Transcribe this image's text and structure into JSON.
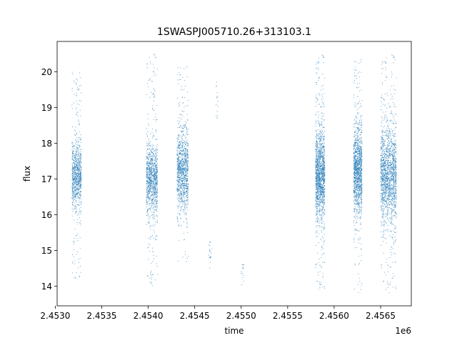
{
  "chart_data": {
    "type": "scatter",
    "title": "1SWASPJ005710.26+313103.1",
    "xlabel": "time",
    "ylabel": "flux",
    "x_offset_label": "1e6",
    "xlim": [
      2.45302,
      2.45683
    ],
    "ylim": [
      13.45,
      20.85
    ],
    "x_ticks": [
      2.453,
      2.4535,
      2.454,
      2.4545,
      2.455,
      2.4555,
      2.456,
      2.4565
    ],
    "x_tick_labels": [
      "2.4530",
      "2.4535",
      "2.4540",
      "2.4545",
      "2.4550",
      "2.4555",
      "2.4560",
      "2.4565"
    ],
    "y_ticks": [
      14,
      15,
      16,
      17,
      18,
      19,
      20
    ],
    "y_tick_labels": [
      "14",
      "15",
      "16",
      "17",
      "18",
      "19",
      "20"
    ],
    "grid": false,
    "legend": "none",
    "marker_color": "#1f77b4",
    "observing_seasons": [
      {
        "x_start": 2.45318,
        "x_end": 2.45328,
        "median_flux": 17.1,
        "core_spread": 0.45,
        "y_min": 14.2,
        "y_max": 20.0,
        "points": 900
      },
      {
        "x_start": 2.45398,
        "x_end": 2.4541,
        "median_flux": 17.0,
        "core_spread": 0.5,
        "y_min": 14.0,
        "y_max": 20.5,
        "points": 1100
      },
      {
        "x_start": 2.45431,
        "x_end": 2.45443,
        "median_flux": 17.2,
        "core_spread": 0.55,
        "y_min": 14.6,
        "y_max": 20.3,
        "points": 1100
      },
      {
        "x_start": 2.45465,
        "x_end": 2.45468,
        "median_flux": 14.9,
        "core_spread": 0.3,
        "y_min": 14.4,
        "y_max": 15.3,
        "points": 20
      },
      {
        "x_start": 2.45473,
        "x_end": 2.45475,
        "median_flux": 19.2,
        "core_spread": 0.3,
        "y_min": 18.6,
        "y_max": 19.8,
        "points": 15
      },
      {
        "x_start": 2.455,
        "x_end": 2.45503,
        "median_flux": 14.3,
        "core_spread": 0.2,
        "y_min": 14.0,
        "y_max": 14.6,
        "points": 15
      },
      {
        "x_start": 2.4558,
        "x_end": 2.4559,
        "median_flux": 17.1,
        "core_spread": 0.6,
        "y_min": 13.8,
        "y_max": 20.5,
        "points": 1500
      },
      {
        "x_start": 2.45621,
        "x_end": 2.4563,
        "median_flux": 17.2,
        "core_spread": 0.6,
        "y_min": 13.8,
        "y_max": 20.5,
        "points": 1300
      },
      {
        "x_start": 2.4565,
        "x_end": 2.45667,
        "median_flux": 17.1,
        "core_spread": 0.65,
        "y_min": 13.8,
        "y_max": 20.5,
        "points": 1700
      }
    ]
  }
}
